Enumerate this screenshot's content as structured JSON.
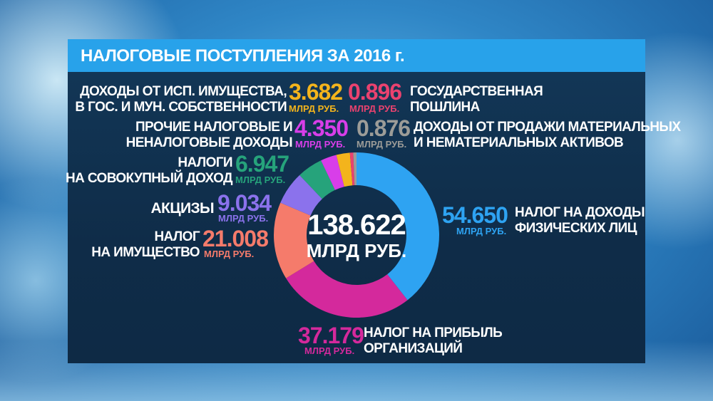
{
  "header": {
    "title": "НАЛОГОВЫЕ ПОСТУПЛЕНИЯ ЗА 2016 г."
  },
  "chart_data": {
    "type": "pie",
    "donut": true,
    "title": "НАЛОГОВЫЕ ПОСТУПЛЕНИЯ ЗА 2016 г.",
    "total": {
      "value": "138.622",
      "unit": "МЛРД РУБ."
    },
    "unit": "МЛРД РУБ.",
    "slices": [
      {
        "label_lines": [
          "НАЛОГ НА ДОХОДЫ",
          "ФИЗИЧЕСКИХ ЛИЦ"
        ],
        "value": 54.65,
        "text": "54.650",
        "color": "#2ea3f2"
      },
      {
        "label_lines": [
          "НАЛОГ НА ПРИБЫЛЬ",
          "ОРГАНИЗАЦИЙ"
        ],
        "value": 37.179,
        "text": "37.179",
        "color": "#d4299c"
      },
      {
        "label_lines": [
          "НАЛОГ",
          "НА ИМУЩЕСТВО"
        ],
        "value": 21.008,
        "text": "21.008",
        "color": "#f57b6b"
      },
      {
        "label_lines": [
          "АКЦИЗЫ"
        ],
        "value": 9.034,
        "text": "9.034",
        "color": "#8b72ec"
      },
      {
        "label_lines": [
          "НАЛОГИ",
          "НА СОВОКУПНЫЙ ДОХОД"
        ],
        "value": 6.947,
        "text": "6.947",
        "color": "#26a37b"
      },
      {
        "label_lines": [
          "ПРОЧИЕ НАЛОГОВЫЕ И",
          "НЕНАЛОГОВЫЕ ДОХОДЫ"
        ],
        "value": 4.35,
        "text": "4.350",
        "color": "#d83ee9"
      },
      {
        "label_lines": [
          "ДОХОДЫ ОТ ИСП. ИМУЩЕСТВА,",
          "В ГОС. И МУН. СОБСТВЕННОСТИ"
        ],
        "value": 3.682,
        "text": "3.682",
        "color": "#f3b41c"
      },
      {
        "label_lines": [
          "ГОСУДАРСТВЕННАЯ",
          "ПОШЛИНА"
        ],
        "value": 0.896,
        "text": "0.896",
        "color": "#ea426f"
      },
      {
        "label_lines": [
          "ДОХОДЫ ОТ ПРОДАЖИ МАТЕРИАЛЬНЫХ",
          "И НЕМАТЕРИАЛЬНЫХ АКТИВОВ"
        ],
        "value": 0.876,
        "text": "0.876",
        "color": "#9c9c98"
      }
    ]
  }
}
